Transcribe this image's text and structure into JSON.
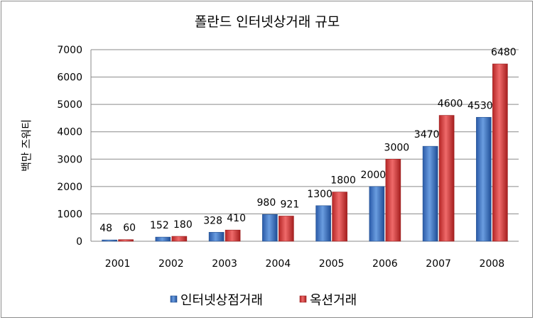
{
  "chart_data": {
    "type": "bar",
    "title": "폴란드 인터넷상거래 규모",
    "ylabel": "백만 즈워티",
    "xlabel": "",
    "categories": [
      "2001",
      "2002",
      "2003",
      "2004",
      "2005",
      "2006",
      "2007",
      "2008"
    ],
    "series": [
      {
        "name": "인터넷상점거래",
        "values": [
          48,
          152,
          328,
          980,
          1300,
          2000,
          3470,
          4530
        ],
        "color": "#3a76c8"
      },
      {
        "name": "옥션거래",
        "values": [
          60,
          180,
          410,
          921,
          1800,
          3000,
          4600,
          6480
        ],
        "color": "#d63a3a"
      }
    ],
    "ylim": [
      0,
      7000
    ],
    "yticks": [
      0,
      1000,
      2000,
      3000,
      4000,
      5000,
      6000,
      7000
    ],
    "grid": true,
    "legend": "bottom"
  }
}
